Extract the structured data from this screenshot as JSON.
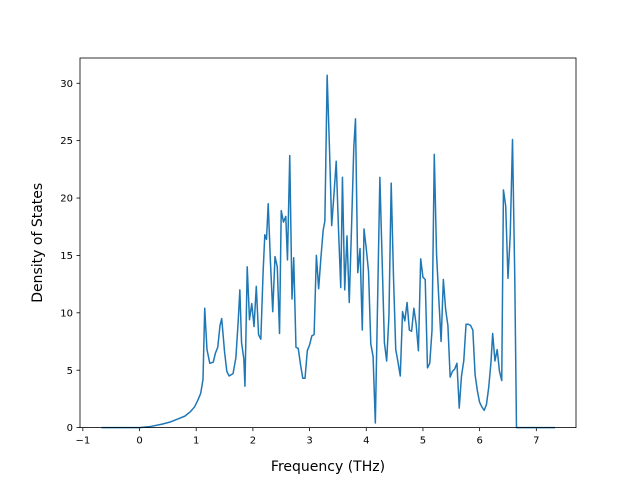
{
  "chart_data": {
    "type": "line",
    "title": "",
    "xlabel": "Frequency (THz)",
    "ylabel": "Density of States",
    "xlim": [
      -1.05,
      7.7
    ],
    "ylim": [
      0,
      32.2
    ],
    "x_ticks": [
      -1,
      0,
      1,
      2,
      3,
      4,
      5,
      6,
      7
    ],
    "y_ticks": [
      0,
      5,
      10,
      15,
      20,
      25,
      30
    ],
    "grid": false,
    "legend": "none",
    "series": [
      {
        "color": "#1f77b4",
        "points": [
          [
            -0.67,
            0.0
          ],
          [
            0.0,
            0.0
          ],
          [
            0.2,
            0.1
          ],
          [
            0.4,
            0.3
          ],
          [
            0.55,
            0.5
          ],
          [
            0.7,
            0.8
          ],
          [
            0.8,
            1.0
          ],
          [
            0.9,
            1.4
          ],
          [
            0.97,
            1.8
          ],
          [
            1.03,
            2.4
          ],
          [
            1.08,
            3.0
          ],
          [
            1.12,
            4.2
          ],
          [
            1.15,
            10.4
          ],
          [
            1.19,
            6.8
          ],
          [
            1.24,
            5.6
          ],
          [
            1.3,
            5.7
          ],
          [
            1.34,
            6.5
          ],
          [
            1.38,
            7.0
          ],
          [
            1.42,
            8.9
          ],
          [
            1.45,
            9.5
          ],
          [
            1.5,
            6.6
          ],
          [
            1.54,
            4.9
          ],
          [
            1.58,
            4.5
          ],
          [
            1.65,
            4.7
          ],
          [
            1.7,
            6.1
          ],
          [
            1.74,
            9.2
          ],
          [
            1.77,
            12.0
          ],
          [
            1.8,
            7.4
          ],
          [
            1.84,
            6.0
          ],
          [
            1.86,
            3.6
          ],
          [
            1.9,
            14.0
          ],
          [
            1.94,
            9.4
          ],
          [
            1.98,
            10.8
          ],
          [
            2.02,
            8.8
          ],
          [
            2.06,
            12.3
          ],
          [
            2.1,
            8.1
          ],
          [
            2.14,
            7.7
          ],
          [
            2.18,
            13.5
          ],
          [
            2.21,
            16.8
          ],
          [
            2.24,
            16.4
          ],
          [
            2.27,
            19.5
          ],
          [
            2.31,
            14.4
          ],
          [
            2.35,
            10.1
          ],
          [
            2.39,
            14.9
          ],
          [
            2.43,
            14.0
          ],
          [
            2.47,
            8.2
          ],
          [
            2.5,
            18.9
          ],
          [
            2.54,
            17.9
          ],
          [
            2.58,
            18.4
          ],
          [
            2.61,
            14.6
          ],
          [
            2.65,
            23.7
          ],
          [
            2.69,
            11.2
          ],
          [
            2.72,
            14.8
          ],
          [
            2.76,
            7.0
          ],
          [
            2.8,
            6.9
          ],
          [
            2.84,
            5.5
          ],
          [
            2.88,
            4.3
          ],
          [
            2.92,
            4.3
          ],
          [
            2.96,
            6.7
          ],
          [
            3.0,
            7.2
          ],
          [
            3.04,
            8.0
          ],
          [
            3.08,
            8.1
          ],
          [
            3.12,
            15.0
          ],
          [
            3.16,
            12.1
          ],
          [
            3.2,
            14.8
          ],
          [
            3.24,
            17.2
          ],
          [
            3.27,
            18.0
          ],
          [
            3.31,
            30.7
          ],
          [
            3.35,
            24.5
          ],
          [
            3.39,
            17.6
          ],
          [
            3.43,
            20.3
          ],
          [
            3.47,
            23.2
          ],
          [
            3.51,
            17.3
          ],
          [
            3.55,
            12.2
          ],
          [
            3.58,
            21.8
          ],
          [
            3.62,
            12.0
          ],
          [
            3.66,
            16.7
          ],
          [
            3.7,
            10.9
          ],
          [
            3.74,
            17.4
          ],
          [
            3.78,
            24.4
          ],
          [
            3.81,
            26.9
          ],
          [
            3.85,
            13.5
          ],
          [
            3.89,
            15.6
          ],
          [
            3.93,
            8.5
          ],
          [
            3.96,
            17.3
          ],
          [
            4.0,
            15.6
          ],
          [
            4.04,
            13.6
          ],
          [
            4.08,
            7.3
          ],
          [
            4.12,
            6.2
          ],
          [
            4.16,
            0.4
          ],
          [
            4.2,
            11.0
          ],
          [
            4.24,
            21.8
          ],
          [
            4.28,
            14.6
          ],
          [
            4.32,
            7.4
          ],
          [
            4.36,
            5.8
          ],
          [
            4.4,
            9.7
          ],
          [
            4.44,
            21.3
          ],
          [
            4.48,
            13.2
          ],
          [
            4.52,
            6.8
          ],
          [
            4.56,
            5.7
          ],
          [
            4.6,
            4.5
          ],
          [
            4.64,
            10.1
          ],
          [
            4.68,
            9.3
          ],
          [
            4.72,
            10.9
          ],
          [
            4.76,
            8.5
          ],
          [
            4.8,
            8.4
          ],
          [
            4.84,
            10.4
          ],
          [
            4.88,
            9.0
          ],
          [
            4.92,
            6.7
          ],
          [
            4.96,
            14.7
          ],
          [
            5.0,
            13.1
          ],
          [
            5.04,
            12.9
          ],
          [
            5.08,
            5.2
          ],
          [
            5.12,
            5.6
          ],
          [
            5.16,
            8.5
          ],
          [
            5.2,
            23.8
          ],
          [
            5.24,
            15.1
          ],
          [
            5.28,
            11.2
          ],
          [
            5.32,
            7.5
          ],
          [
            5.36,
            12.9
          ],
          [
            5.4,
            10.3
          ],
          [
            5.44,
            8.9
          ],
          [
            5.48,
            4.4
          ],
          [
            5.52,
            4.9
          ],
          [
            5.56,
            5.1
          ],
          [
            5.6,
            5.6
          ],
          [
            5.64,
            1.7
          ],
          [
            5.68,
            4.5
          ],
          [
            5.72,
            5.8
          ],
          [
            5.76,
            9.0
          ],
          [
            5.8,
            9.0
          ],
          [
            5.84,
            8.9
          ],
          [
            5.88,
            8.5
          ],
          [
            5.92,
            4.6
          ],
          [
            5.96,
            3.2
          ],
          [
            6.0,
            2.2
          ],
          [
            6.04,
            1.8
          ],
          [
            6.08,
            1.5
          ],
          [
            6.12,
            2.0
          ],
          [
            6.16,
            3.5
          ],
          [
            6.2,
            5.7
          ],
          [
            6.23,
            8.2
          ],
          [
            6.27,
            5.8
          ],
          [
            6.31,
            6.8
          ],
          [
            6.35,
            4.9
          ],
          [
            6.39,
            4.1
          ],
          [
            6.42,
            20.7
          ],
          [
            6.46,
            19.3
          ],
          [
            6.5,
            13.0
          ],
          [
            6.54,
            16.8
          ],
          [
            6.58,
            25.1
          ],
          [
            6.62,
            13.0
          ],
          [
            6.65,
            0.0
          ],
          [
            7.0,
            0.0
          ],
          [
            7.33,
            0.0
          ]
        ]
      }
    ]
  }
}
